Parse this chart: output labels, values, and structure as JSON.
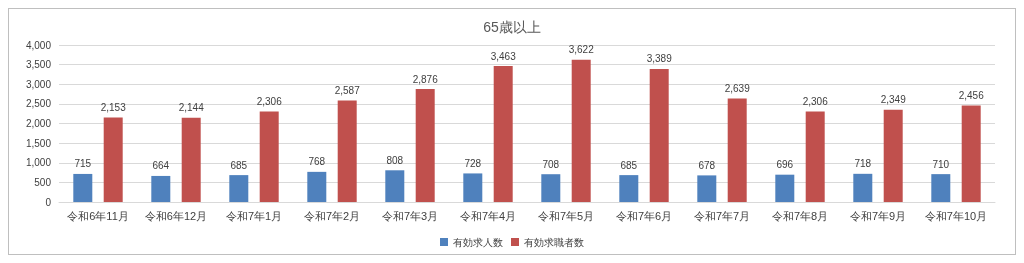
{
  "chart_data": {
    "type": "bar",
    "title": "65歳以上",
    "categories": [
      "令和6年11月",
      "令和6年12月",
      "令和7年1月",
      "令和7年2月",
      "令和7年3月",
      "令和7年4月",
      "令和7年5月",
      "令和7年6月",
      "令和7年7月",
      "令和7年8月",
      "令和7年9月",
      "令和7年10月"
    ],
    "series": [
      {
        "name": "有効求人数",
        "color": "#4f81bd",
        "values": [
          715,
          664,
          685,
          768,
          808,
          728,
          708,
          685,
          678,
          696,
          718,
          710
        ],
        "value_labels": [
          "715",
          "664",
          "685",
          "768",
          "808",
          "728",
          "708",
          "685",
          "678",
          "696",
          "718",
          "710"
        ]
      },
      {
        "name": "有効求職者数",
        "color": "#c0504d",
        "values": [
          2153,
          2144,
          2306,
          2587,
          2876,
          3463,
          3622,
          3389,
          2639,
          2306,
          2349,
          2456
        ],
        "value_labels": [
          "2,153",
          "2,144",
          "2,306",
          "2,587",
          "2,876",
          "3,463",
          "3,622",
          "3,389",
          "2,639",
          "2,306",
          "2,349",
          "2,456"
        ]
      }
    ],
    "ylim": [
      0,
      4000
    ],
    "yticks": [
      0,
      {
        "value": 500,
        "label": "500"
      },
      {
        "value": 1000,
        "label": "1,000"
      },
      {
        "value": 1500,
        "label": "1,500"
      },
      {
        "value": 2000,
        "label": "2,000"
      },
      {
        "value": 2500,
        "label": "2,500"
      },
      {
        "value": 3000,
        "label": "3,000"
      },
      {
        "value": 3500,
        "label": "3,500"
      },
      {
        "value": 4000,
        "label": "4,000"
      }
    ],
    "grid": "y",
    "legend": "bottom"
  }
}
